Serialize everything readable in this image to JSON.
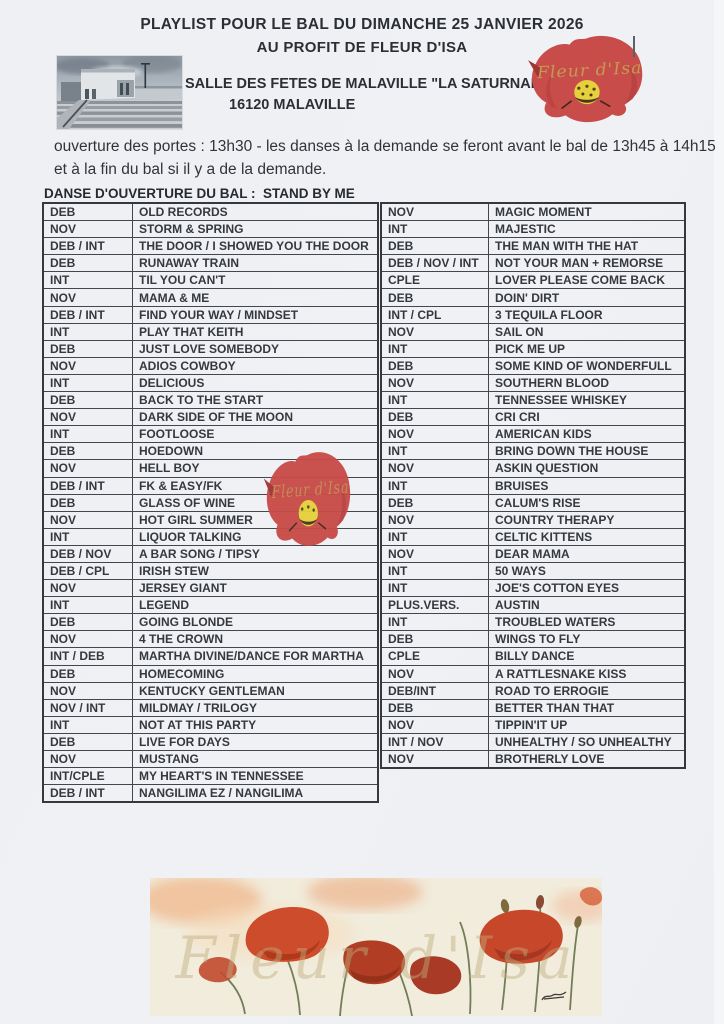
{
  "header": {
    "title_line1": "PLAYLIST POUR LE BAL DU DIMANCHE  25 JANVIER 2026",
    "title_line2": "AU PROFIT DE FLEUR D'ISA"
  },
  "venue": {
    "line1": "SALLE DES FETES DE MALAVILLE \"LA SATURNALE\"",
    "line2": "16120 MALAVILLE"
  },
  "logo": {
    "text": "Fleur d'Isa",
    "flower_color": "#c84c49",
    "center_color": "#e4d13c",
    "text_color": "#c59a52"
  },
  "intro": {
    "line1": "ouverture des portes : 13h30 - les danses à la demande se feront avant le bal de 13h45 à 14h15",
    "line2": "et à la fin du bal si il y a de la demande."
  },
  "opening_dance_label": "DANSE D'OUVERTURE DU BAL :  STAND BY ME",
  "playlist": {
    "left_column": [
      {
        "level": "DEB",
        "song": "OLD RECORDS"
      },
      {
        "level": "NOV",
        "song": "STORM & SPRING"
      },
      {
        "level": "DEB / INT",
        "song": "THE DOOR / I SHOWED YOU THE DOOR"
      },
      {
        "level": "DEB",
        "song": "RUNAWAY TRAIN"
      },
      {
        "level": "INT",
        "song": "TIL YOU CAN'T"
      },
      {
        "level": "NOV",
        "song": "MAMA & ME"
      },
      {
        "level": "DEB / INT",
        "song": "FIND YOUR WAY / MINDSET"
      },
      {
        "level": "INT",
        "song": "PLAY THAT KEITH"
      },
      {
        "level": "DEB",
        "song": "JUST LOVE SOMEBODY"
      },
      {
        "level": "NOV",
        "song": "ADIOS COWBOY"
      },
      {
        "level": "INT",
        "song": "DELICIOUS"
      },
      {
        "level": "DEB",
        "song": "BACK TO THE START"
      },
      {
        "level": "NOV",
        "song": "DARK SIDE OF THE MOON"
      },
      {
        "level": "INT",
        "song": "FOOTLOOSE"
      },
      {
        "level": "DEB",
        "song": "HOEDOWN"
      },
      {
        "level": "NOV",
        "song": "HELL BOY"
      },
      {
        "level": "DEB / INT",
        "song": "FK & EASY/FK"
      },
      {
        "level": "DEB",
        "song": "GLASS OF WINE"
      },
      {
        "level": "NOV",
        "song": "HOT GIRL SUMMER"
      },
      {
        "level": "INT",
        "song": "LIQUOR TALKING"
      },
      {
        "level": "DEB / NOV",
        "song": "A BAR SONG / TIPSY"
      },
      {
        "level": "DEB / CPL",
        "song": "IRISH STEW"
      },
      {
        "level": "NOV",
        "song": "JERSEY GIANT"
      },
      {
        "level": "INT",
        "song": "LEGEND"
      },
      {
        "level": "DEB",
        "song": "GOING BLONDE"
      },
      {
        "level": "NOV",
        "song": "4 THE CROWN"
      },
      {
        "level": "INT / DEB",
        "song": "MARTHA DIVINE/DANCE FOR MARTHA"
      },
      {
        "level": "DEB",
        "song": "HOMECOMING"
      },
      {
        "level": "NOV",
        "song": "KENTUCKY GENTLEMAN"
      },
      {
        "level": "NOV / INT",
        "song": "MILDMAY / TRILOGY"
      },
      {
        "level": "INT",
        "song": "NOT AT THIS PARTY"
      },
      {
        "level": "DEB",
        "song": "LIVE FOR DAYS"
      },
      {
        "level": "NOV",
        "song": "MUSTANG"
      },
      {
        "level": "INT/CPLE",
        "song": "MY HEART'S IN TENNESSEE"
      },
      {
        "level": "DEB / INT",
        "song": "NANGILIMA EZ / NANGILIMA"
      }
    ],
    "right_column": [
      {
        "level": "NOV",
        "song": "MAGIC MOMENT"
      },
      {
        "level": "INT",
        "song": "MAJESTIC"
      },
      {
        "level": "DEB",
        "song": "THE MAN WITH THE HAT"
      },
      {
        "level": "DEB / NOV / INT",
        "song": "NOT YOUR MAN  +  REMORSE"
      },
      {
        "level": "CPLE",
        "song": "LOVER PLEASE COME BACK"
      },
      {
        "level": "DEB",
        "song": "DOIN' DIRT"
      },
      {
        "level": "INT / CPL",
        "song": "3 TEQUILA FLOOR"
      },
      {
        "level": "NOV",
        "song": "SAIL ON"
      },
      {
        "level": "INT",
        "song": "PICK ME UP"
      },
      {
        "level": "DEB",
        "song": "SOME KIND OF WONDERFULL"
      },
      {
        "level": "NOV",
        "song": "SOUTHERN BLOOD"
      },
      {
        "level": "INT",
        "song": "TENNESSEE WHISKEY"
      },
      {
        "level": "DEB",
        "song": "CRI CRI"
      },
      {
        "level": "NOV",
        "song": "AMERICAN KIDS"
      },
      {
        "level": "INT",
        "song": "BRING DOWN THE HOUSE"
      },
      {
        "level": "NOV",
        "song": "ASKIN QUESTION"
      },
      {
        "level": "INT",
        "song": "BRUISES"
      },
      {
        "level": "DEB",
        "song": "CALUM'S RISE"
      },
      {
        "level": "NOV",
        "song": "COUNTRY THERAPY"
      },
      {
        "level": "INT",
        "song": "CELTIC KITTENS"
      },
      {
        "level": "NOV",
        "song": "DEAR MAMA"
      },
      {
        "level": "INT",
        "song": "50 WAYS"
      },
      {
        "level": "INT",
        "song": "JOE'S COTTON EYES"
      },
      {
        "level": "PLUS.VERS.",
        "song": "AUSTIN"
      },
      {
        "level": "INT",
        "song": "TROUBLED WATERS"
      },
      {
        "level": "DEB",
        "song": "WINGS TO FLY"
      },
      {
        "level": "CPLE",
        "song": "BILLY DANCE"
      },
      {
        "level": "NOV",
        "song": "A RATTLESNAKE KISS"
      },
      {
        "level": "DEB/INT",
        "song": "ROAD TO ERROGIE"
      },
      {
        "level": "DEB",
        "song": "BETTER THAN THAT"
      },
      {
        "level": "NOV",
        "song": "TIPPIN'IT UP"
      },
      {
        "level": "INT / NOV",
        "song": "UNHEALTHY / SO UNHEALTHY"
      },
      {
        "level": "NOV",
        "song": "BROTHERLY LOVE"
      }
    ]
  },
  "painting": {
    "watermark": "Fleur d'Isa"
  }
}
